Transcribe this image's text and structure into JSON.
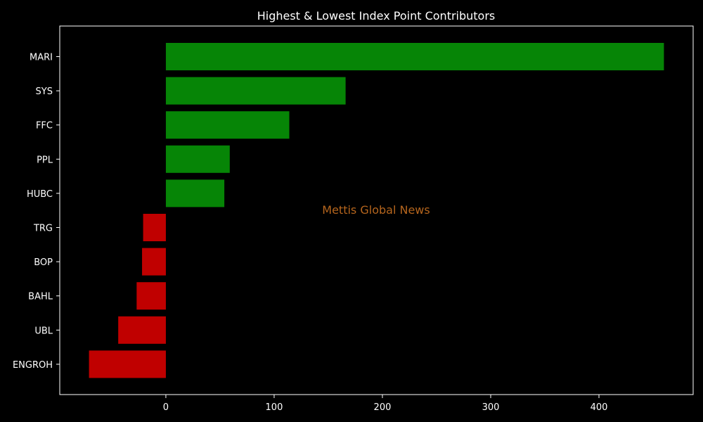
{
  "chart_data": {
    "type": "bar",
    "orientation": "horizontal",
    "title": "Highest & Lowest Index Point Contributors",
    "xlabel": "",
    "ylabel": "",
    "xlim": [
      -98,
      487
    ],
    "xticks": [
      0,
      100,
      200,
      300,
      400
    ],
    "grid": false,
    "categories": [
      "MARI",
      "SYS",
      "FFC",
      "PPL",
      "HUBC",
      "TRG",
      "BOP",
      "BAHL",
      "UBL",
      "ENGROH"
    ],
    "values": [
      460,
      166,
      114,
      59,
      54,
      -21,
      -22,
      -27,
      -44,
      -71
    ],
    "positive_color": "#068506",
    "negative_color": "#c00000",
    "watermark": "Mettis Global News",
    "watermark_color": "#b5651d",
    "background_color": "#000000",
    "text_color": "#ffffff"
  }
}
